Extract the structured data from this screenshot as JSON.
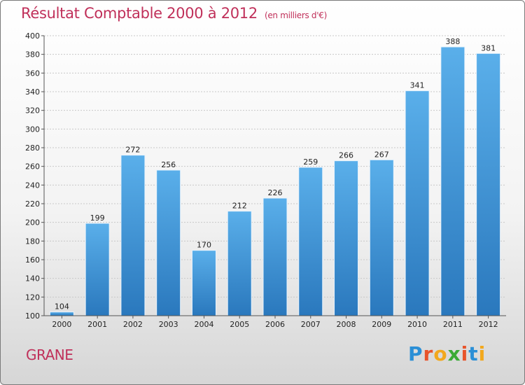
{
  "chart_data": {
    "type": "bar",
    "title": "Résultat Comptable 2000 à 2012",
    "subtitle": "(en milliers d'€)",
    "categories": [
      "2000",
      "2001",
      "2002",
      "2003",
      "2004",
      "2005",
      "2006",
      "2007",
      "2008",
      "2009",
      "2010",
      "2011",
      "2012"
    ],
    "values": [
      104,
      199,
      272,
      256,
      170,
      212,
      226,
      259,
      266,
      267,
      341,
      388,
      381
    ],
    "ylim": [
      100,
      400
    ],
    "yticks": [
      100,
      120,
      140,
      160,
      180,
      200,
      220,
      240,
      260,
      280,
      300,
      320,
      340,
      360,
      380,
      400
    ],
    "grid": true,
    "xlabel": "",
    "ylabel": ""
  },
  "footer": {
    "commune": "GRANE",
    "logo_letters": [
      "P",
      "r",
      "o",
      "x",
      "i",
      "t",
      "i"
    ],
    "logo_colors": [
      "#2b8fd6",
      "#e8542b",
      "#f2a81d",
      "#3aaa35",
      "#e8542b",
      "#2b8fd6",
      "#f2a81d"
    ]
  },
  "colors": {
    "bar_top": "#5aafea",
    "bar_bottom": "#2a78bd",
    "title": "#c0305a"
  }
}
